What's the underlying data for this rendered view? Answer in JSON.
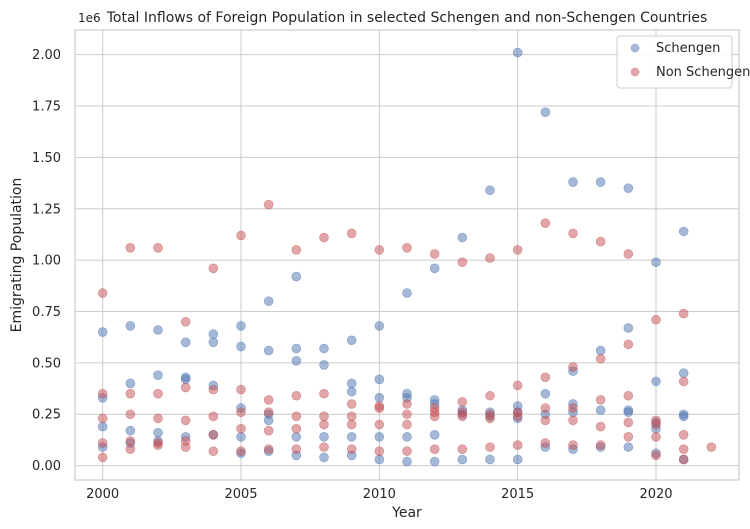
{
  "chart_data": {
    "type": "scatter",
    "title": "Total Inflows of Foreign Population in selected Schengen and non-Schengen Countries",
    "xlabel": "Year",
    "ylabel": "Emigrating Population",
    "y_offset_label": "1e6",
    "xlim": [
      1999.0,
      2023.0
    ],
    "ylim": [
      -0.07,
      2.12
    ],
    "x_ticks": [
      2000,
      2005,
      2010,
      2015,
      2020
    ],
    "x_tick_labels": [
      "2000",
      "2005",
      "2010",
      "2015",
      "2020"
    ],
    "y_ticks": [
      0.0,
      0.25,
      0.5,
      0.75,
      1.0,
      1.25,
      1.5,
      1.75,
      2.0
    ],
    "y_tick_labels": [
      "0.00",
      "0.25",
      "0.50",
      "0.75",
      "1.00",
      "1.25",
      "1.50",
      "1.75",
      "2.00"
    ],
    "grid": true,
    "legend_position": "top-right",
    "series": [
      {
        "name": "Schengen",
        "color": "#4c72b0",
        "points": [
          [
            2000,
            0.65
          ],
          [
            2000,
            0.33
          ],
          [
            2000,
            0.19
          ],
          [
            2000,
            0.09
          ],
          [
            2001,
            0.68
          ],
          [
            2001,
            0.4
          ],
          [
            2001,
            0.17
          ],
          [
            2001,
            0.11
          ],
          [
            2002,
            0.66
          ],
          [
            2002,
            0.44
          ],
          [
            2002,
            0.16
          ],
          [
            2002,
            0.12
          ],
          [
            2003,
            0.6
          ],
          [
            2003,
            0.43
          ],
          [
            2003,
            0.42
          ],
          [
            2003,
            0.14
          ],
          [
            2004,
            0.64
          ],
          [
            2004,
            0.6
          ],
          [
            2004,
            0.39
          ],
          [
            2004,
            0.15
          ],
          [
            2005,
            0.68
          ],
          [
            2005,
            0.58
          ],
          [
            2005,
            0.28
          ],
          [
            2005,
            0.14
          ],
          [
            2005,
            0.06
          ],
          [
            2006,
            0.8
          ],
          [
            2006,
            0.56
          ],
          [
            2006,
            0.25
          ],
          [
            2006,
            0.22
          ],
          [
            2006,
            0.07
          ],
          [
            2007,
            0.92
          ],
          [
            2007,
            0.57
          ],
          [
            2007,
            0.51
          ],
          [
            2007,
            0.14
          ],
          [
            2007,
            0.05
          ],
          [
            2008,
            0.57
          ],
          [
            2008,
            0.49
          ],
          [
            2008,
            0.14
          ],
          [
            2008,
            0.04
          ],
          [
            2009,
            0.61
          ],
          [
            2009,
            0.4
          ],
          [
            2009,
            0.36
          ],
          [
            2009,
            0.14
          ],
          [
            2009,
            0.05
          ],
          [
            2010,
            0.68
          ],
          [
            2010,
            0.42
          ],
          [
            2010,
            0.33
          ],
          [
            2010,
            0.14
          ],
          [
            2010,
            0.03
          ],
          [
            2011,
            0.84
          ],
          [
            2011,
            0.35
          ],
          [
            2011,
            0.33
          ],
          [
            2011,
            0.14
          ],
          [
            2011,
            0.02
          ],
          [
            2012,
            0.96
          ],
          [
            2012,
            0.32
          ],
          [
            2012,
            0.3
          ],
          [
            2012,
            0.15
          ],
          [
            2012,
            0.02
          ],
          [
            2013,
            1.11
          ],
          [
            2013,
            0.27
          ],
          [
            2013,
            0.25
          ],
          [
            2013,
            0.03
          ],
          [
            2014,
            1.34
          ],
          [
            2014,
            0.26
          ],
          [
            2014,
            0.24
          ],
          [
            2014,
            0.03
          ],
          [
            2015,
            2.01
          ],
          [
            2015,
            0.29
          ],
          [
            2015,
            0.26
          ],
          [
            2015,
            0.23
          ],
          [
            2015,
            0.03
          ],
          [
            2016,
            1.72
          ],
          [
            2016,
            0.35
          ],
          [
            2016,
            0.25
          ],
          [
            2016,
            0.09
          ],
          [
            2017,
            1.38
          ],
          [
            2017,
            0.46
          ],
          [
            2017,
            0.3
          ],
          [
            2017,
            0.26
          ],
          [
            2017,
            0.08
          ],
          [
            2018,
            1.38
          ],
          [
            2018,
            0.56
          ],
          [
            2018,
            0.27
          ],
          [
            2018,
            0.09
          ],
          [
            2019,
            1.35
          ],
          [
            2019,
            0.67
          ],
          [
            2019,
            0.27
          ],
          [
            2019,
            0.26
          ],
          [
            2019,
            0.09
          ],
          [
            2020,
            0.99
          ],
          [
            2020,
            0.41
          ],
          [
            2020,
            0.21
          ],
          [
            2020,
            0.18
          ],
          [
            2020,
            0.06
          ],
          [
            2021,
            1.14
          ],
          [
            2021,
            0.45
          ],
          [
            2021,
            0.25
          ],
          [
            2021,
            0.24
          ],
          [
            2021,
            0.03
          ]
        ]
      },
      {
        "name": "Non Schengen",
        "color": "#c44e52",
        "points": [
          [
            2000,
            0.84
          ],
          [
            2000,
            0.35
          ],
          [
            2000,
            0.23
          ],
          [
            2000,
            0.11
          ],
          [
            2000,
            0.04
          ],
          [
            2001,
            1.06
          ],
          [
            2001,
            0.35
          ],
          [
            2001,
            0.25
          ],
          [
            2001,
            0.12
          ],
          [
            2001,
            0.08
          ],
          [
            2002,
            1.06
          ],
          [
            2002,
            0.35
          ],
          [
            2002,
            0.23
          ],
          [
            2002,
            0.11
          ],
          [
            2002,
            0.1
          ],
          [
            2003,
            0.7
          ],
          [
            2003,
            0.38
          ],
          [
            2003,
            0.22
          ],
          [
            2003,
            0.12
          ],
          [
            2003,
            0.09
          ],
          [
            2004,
            0.96
          ],
          [
            2004,
            0.37
          ],
          [
            2004,
            0.24
          ],
          [
            2004,
            0.15
          ],
          [
            2004,
            0.07
          ],
          [
            2005,
            1.12
          ],
          [
            2005,
            0.37
          ],
          [
            2005,
            0.26
          ],
          [
            2005,
            0.18
          ],
          [
            2005,
            0.07
          ],
          [
            2006,
            1.27
          ],
          [
            2006,
            0.32
          ],
          [
            2006,
            0.26
          ],
          [
            2006,
            0.17
          ],
          [
            2006,
            0.08
          ],
          [
            2007,
            1.05
          ],
          [
            2007,
            0.34
          ],
          [
            2007,
            0.24
          ],
          [
            2007,
            0.18
          ],
          [
            2007,
            0.08
          ],
          [
            2008,
            1.11
          ],
          [
            2008,
            0.35
          ],
          [
            2008,
            0.24
          ],
          [
            2008,
            0.2
          ],
          [
            2008,
            0.09
          ],
          [
            2009,
            1.13
          ],
          [
            2009,
            0.3
          ],
          [
            2009,
            0.24
          ],
          [
            2009,
            0.2
          ],
          [
            2009,
            0.08
          ],
          [
            2010,
            1.05
          ],
          [
            2010,
            0.29
          ],
          [
            2010,
            0.28
          ],
          [
            2010,
            0.2
          ],
          [
            2010,
            0.07
          ],
          [
            2011,
            1.06
          ],
          [
            2011,
            0.3
          ],
          [
            2011,
            0.25
          ],
          [
            2011,
            0.2
          ],
          [
            2011,
            0.07
          ],
          [
            2012,
            1.03
          ],
          [
            2012,
            0.28
          ],
          [
            2012,
            0.26
          ],
          [
            2012,
            0.24
          ],
          [
            2012,
            0.08
          ],
          [
            2013,
            0.99
          ],
          [
            2013,
            0.31
          ],
          [
            2013,
            0.26
          ],
          [
            2013,
            0.24
          ],
          [
            2013,
            0.08
          ],
          [
            2014,
            1.01
          ],
          [
            2014,
            0.34
          ],
          [
            2014,
            0.25
          ],
          [
            2014,
            0.23
          ],
          [
            2014,
            0.09
          ],
          [
            2015,
            1.05
          ],
          [
            2015,
            0.39
          ],
          [
            2015,
            0.26
          ],
          [
            2015,
            0.24
          ],
          [
            2015,
            0.1
          ],
          [
            2016,
            1.18
          ],
          [
            2016,
            0.43
          ],
          [
            2016,
            0.28
          ],
          [
            2016,
            0.22
          ],
          [
            2016,
            0.11
          ],
          [
            2017,
            1.13
          ],
          [
            2017,
            0.48
          ],
          [
            2017,
            0.28
          ],
          [
            2017,
            0.22
          ],
          [
            2017,
            0.1
          ],
          [
            2018,
            1.09
          ],
          [
            2018,
            0.52
          ],
          [
            2018,
            0.32
          ],
          [
            2018,
            0.19
          ],
          [
            2018,
            0.1
          ],
          [
            2019,
            1.03
          ],
          [
            2019,
            0.59
          ],
          [
            2019,
            0.34
          ],
          [
            2019,
            0.21
          ],
          [
            2019,
            0.14
          ],
          [
            2020,
            0.71
          ],
          [
            2020,
            0.22
          ],
          [
            2020,
            0.2
          ],
          [
            2020,
            0.14
          ],
          [
            2020,
            0.05
          ],
          [
            2021,
            0.74
          ],
          [
            2021,
            0.41
          ],
          [
            2021,
            0.15
          ],
          [
            2021,
            0.08
          ],
          [
            2021,
            0.03
          ],
          [
            2022,
            0.09
          ]
        ]
      }
    ]
  }
}
